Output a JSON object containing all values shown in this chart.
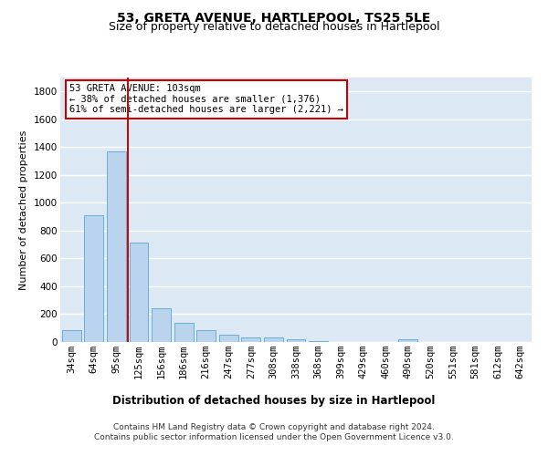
{
  "title": "53, GRETA AVENUE, HARTLEPOOL, TS25 5LE",
  "subtitle": "Size of property relative to detached houses in Hartlepool",
  "xlabel": "Distribution of detached houses by size in Hartlepool",
  "ylabel": "Number of detached properties",
  "categories": [
    "34sqm",
    "64sqm",
    "95sqm",
    "125sqm",
    "156sqm",
    "186sqm",
    "216sqm",
    "247sqm",
    "277sqm",
    "308sqm",
    "338sqm",
    "368sqm",
    "399sqm",
    "429sqm",
    "460sqm",
    "490sqm",
    "520sqm",
    "551sqm",
    "581sqm",
    "612sqm",
    "642sqm"
  ],
  "values": [
    85,
    910,
    1370,
    715,
    245,
    140,
    85,
    50,
    35,
    30,
    18,
    5,
    0,
    0,
    0,
    20,
    0,
    0,
    0,
    0,
    0
  ],
  "bar_color": "#bad4ed",
  "bar_edgecolor": "#6aaed6",
  "vline_color": "#cc0000",
  "vline_pos": 2.5,
  "annotation_text": "53 GRETA AVENUE: 103sqm\n← 38% of detached houses are smaller (1,376)\n61% of semi-detached houses are larger (2,221) →",
  "annotation_box_color": "#ffffff",
  "annotation_box_edgecolor": "#cc0000",
  "ylim": [
    0,
    1900
  ],
  "yticks": [
    0,
    200,
    400,
    600,
    800,
    1000,
    1200,
    1400,
    1600,
    1800
  ],
  "background_color": "#dce9f5",
  "grid_color": "#ffffff",
  "footer_line1": "Contains HM Land Registry data © Crown copyright and database right 2024.",
  "footer_line2": "Contains public sector information licensed under the Open Government Licence v3.0.",
  "title_fontsize": 10,
  "subtitle_fontsize": 9,
  "xlabel_fontsize": 8.5,
  "ylabel_fontsize": 8,
  "tick_fontsize": 7.5,
  "annotation_fontsize": 7.5,
  "footer_fontsize": 6.5
}
